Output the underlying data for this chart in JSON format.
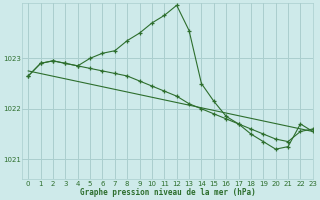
{
  "title": "Graphe pression niveau de la mer (hPa)",
  "background_color": "#ceeaea",
  "grid_color": "#aacece",
  "line_color": "#2d6e2d",
  "xlim": [
    -0.5,
    23
  ],
  "ylim": [
    1020.6,
    1024.1
  ],
  "yticks": [
    1021,
    1022,
    1023
  ],
  "xticks": [
    0,
    1,
    2,
    3,
    4,
    5,
    6,
    7,
    8,
    9,
    10,
    11,
    12,
    13,
    14,
    15,
    16,
    17,
    18,
    19,
    20,
    21,
    22,
    23
  ],
  "series": [
    {
      "x": [
        0,
        1,
        2,
        3,
        4,
        5,
        6,
        7,
        8,
        9,
        10,
        11,
        12,
        13,
        14,
        15,
        16,
        17,
        18,
        19,
        20,
        21,
        22,
        23
      ],
      "y": [
        1022.65,
        1022.9,
        1022.95,
        1022.9,
        1022.85,
        1023.0,
        1023.1,
        1023.15,
        1023.35,
        1023.5,
        1023.7,
        1023.85,
        1024.05,
        1023.55,
        1022.5,
        1022.15,
        1021.85,
        1021.7,
        1021.5,
        1021.35,
        1021.2,
        1021.25,
        1021.7,
        1021.55
      ]
    },
    {
      "x": [
        0,
        1,
        2,
        3,
        4,
        5,
        6,
        7,
        8,
        9,
        10,
        11,
        12,
        13,
        14,
        15,
        16,
        17,
        18,
        19,
        20,
        21,
        22,
        23
      ],
      "y": [
        1022.65,
        1022.9,
        1022.95,
        1022.9,
        1022.85,
        1022.8,
        1022.75,
        1022.7,
        1022.65,
        1022.55,
        1022.45,
        1022.35,
        1022.25,
        1022.1,
        1022.0,
        1021.9,
        1021.8,
        1021.7,
        1021.6,
        1021.5,
        1021.4,
        1021.35,
        1021.55,
        1021.6
      ]
    },
    {
      "x": [
        0,
        23
      ],
      "y": [
        1022.75,
        1021.55
      ]
    }
  ]
}
